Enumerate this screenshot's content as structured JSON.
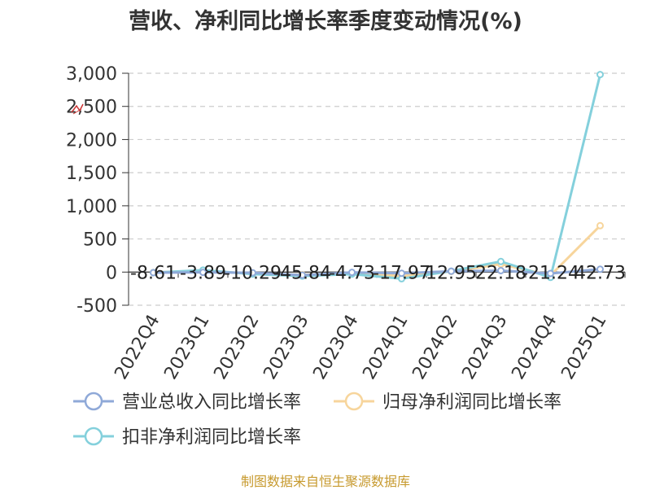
{
  "chart_data": {
    "type": "line",
    "title": "营收、净利同比增长率季度变动情况(%)",
    "categories": [
      "2022Q4",
      "2023Q1",
      "2023Q2",
      "2023Q3",
      "2023Q4",
      "2024Q1",
      "2024Q2",
      "2024Q3",
      "2024Q4",
      "2025Q1"
    ],
    "y_ticks": [
      "3,000",
      "2,500",
      "2,000",
      "1,500",
      "1,000",
      "500",
      "0",
      "-500"
    ],
    "ylim": [
      -500,
      3000
    ],
    "grid": true,
    "legend_position": "bottom",
    "series": [
      {
        "name": "营业总收入同比增长率",
        "color": "#8fa9d8",
        "values": [
          -8.61,
          -3.89,
          -10.29,
          -45.84,
          -4.73,
          -17.97,
          12.95,
          22.18,
          -21.24,
          42.73
        ],
        "labels": [
          "-8.61",
          "-3.89",
          "-10.29",
          "-45.84",
          "-4.73",
          "-17.97",
          "12.95",
          "22.18",
          "-21.24",
          "42.73"
        ]
      },
      {
        "name": "归母净利润同比增长率",
        "color": "#f7d59c",
        "values": [
          -5,
          20,
          -25,
          -40,
          -15,
          -60,
          10,
          120,
          -50,
          700
        ]
      },
      {
        "name": "扣非净利润同比增长率",
        "color": "#84d0dc",
        "values": [
          -8,
          30,
          -30,
          -60,
          -30,
          -100,
          15,
          160,
          -80,
          2980
        ]
      }
    ]
  },
  "source_note": "制图数据来自恒生聚源数据库"
}
